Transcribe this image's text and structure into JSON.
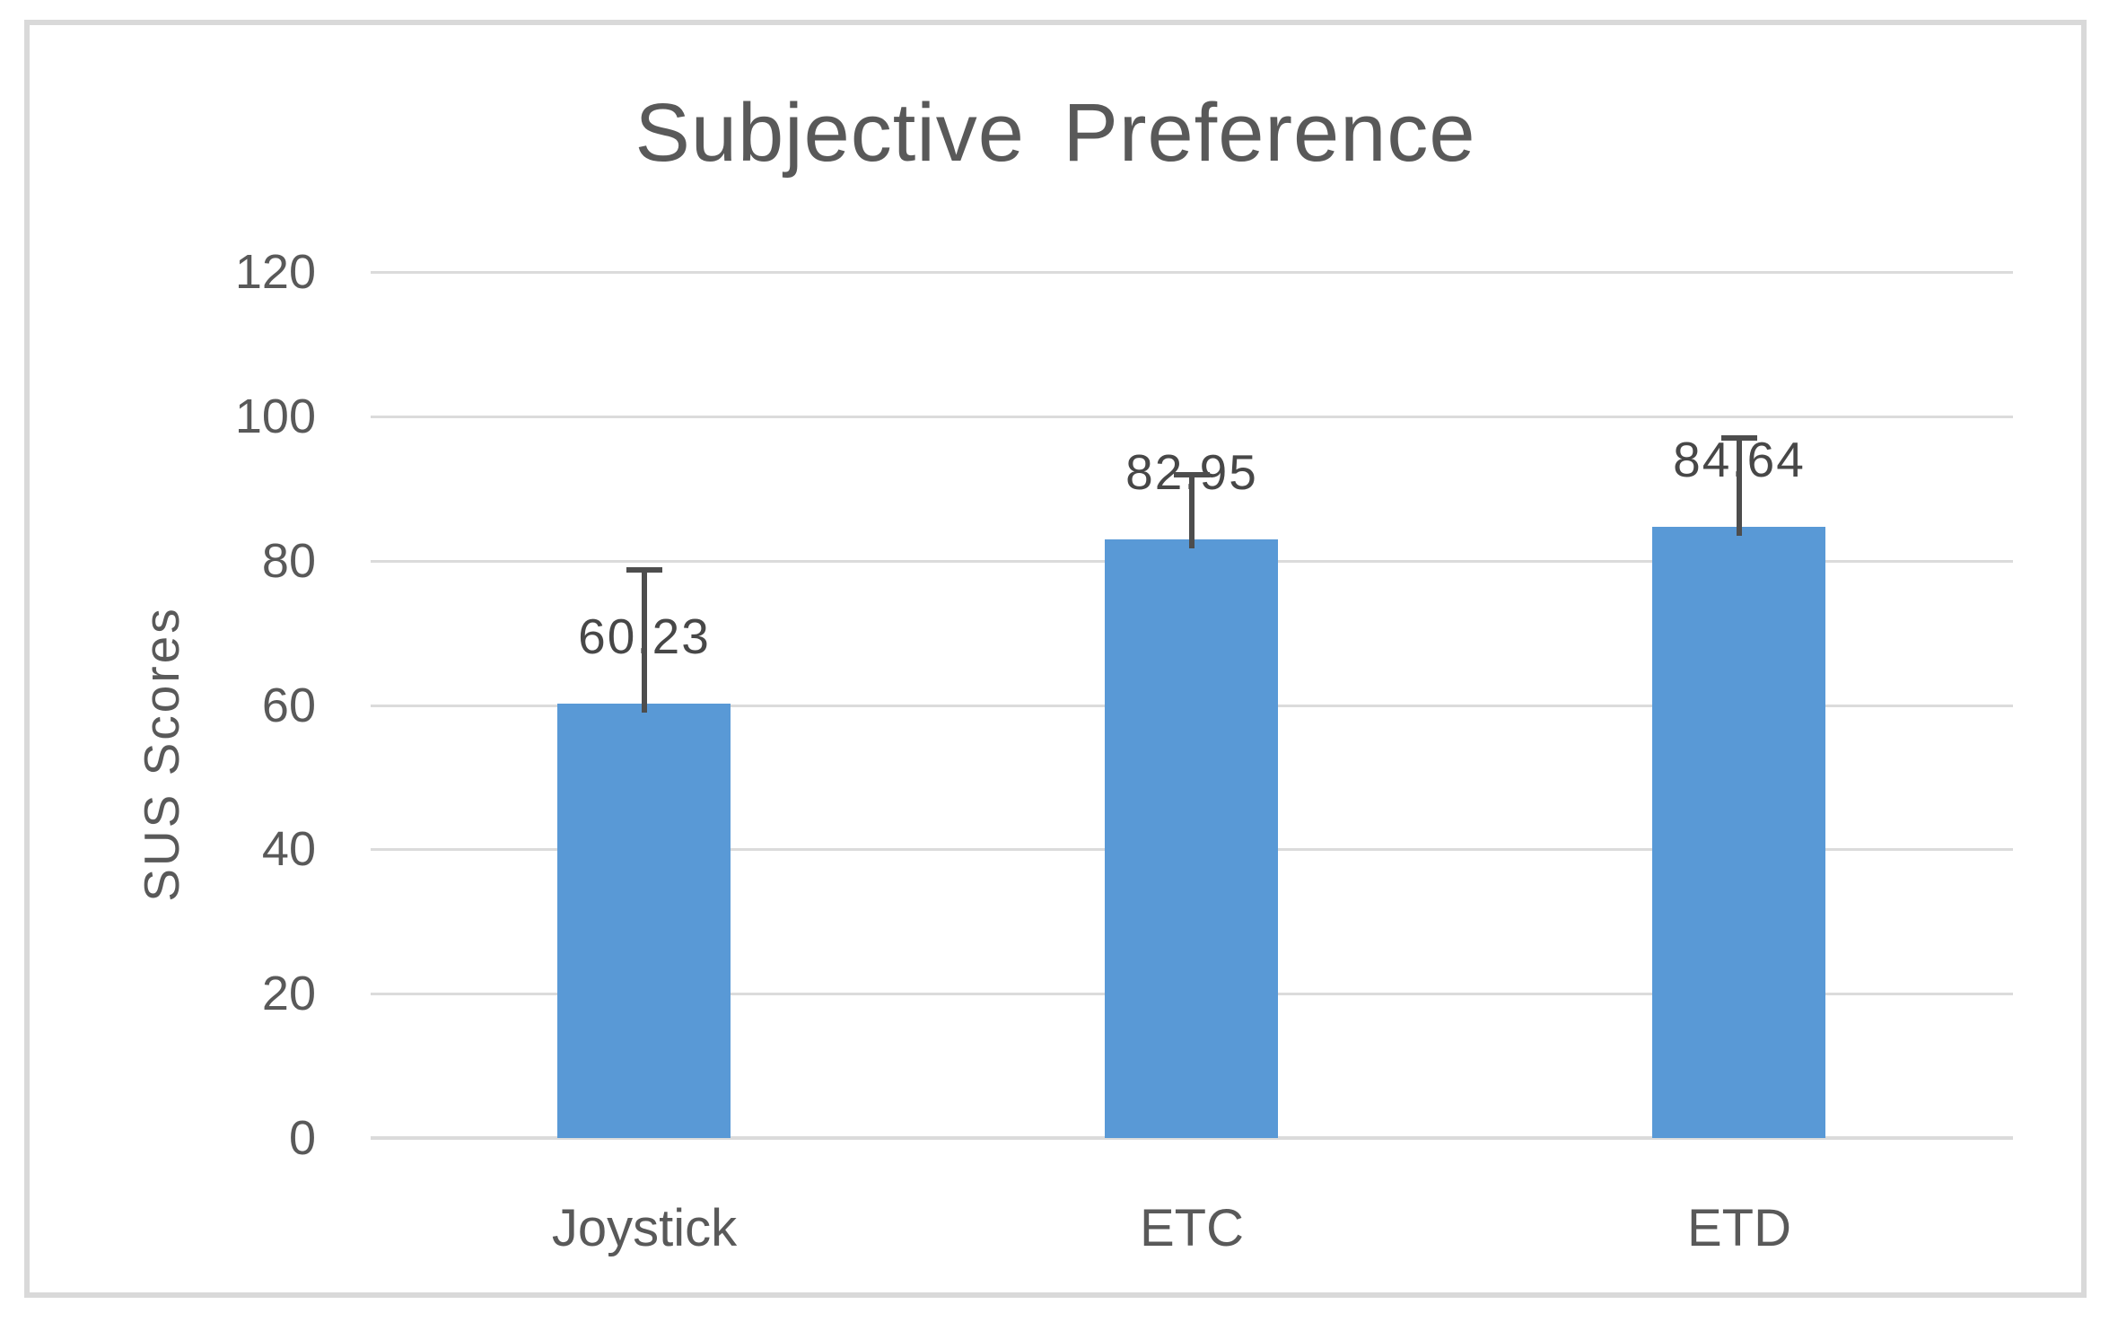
{
  "chart_data": {
    "type": "bar",
    "title": "Subjective Preference",
    "ylabel": "SUS Scores",
    "xlabel": "",
    "categories": [
      "Joystick",
      "ETC",
      "ETD"
    ],
    "series": [
      {
        "name": "SUS Scores",
        "values": [
          60.23,
          82.95,
          84.64
        ],
        "data_labels": [
          "60.23",
          "82.95",
          "84.64"
        ],
        "error_upper": [
          18.5,
          8.9,
          12.3
        ]
      }
    ],
    "ylim": [
      0,
      120
    ],
    "ytick_step": 20,
    "yticks": [
      "0",
      "20",
      "40",
      "60",
      "80",
      "100",
      "120"
    ],
    "grid": true,
    "legend": false,
    "colors": {
      "bar": "#5999D6",
      "gridline": "#DBDBDB",
      "axis_text": "#595959",
      "title_text": "#595959",
      "data_label_text": "#474747",
      "error_bar": "#4D4D4D",
      "frame_border": "#D9D9D9",
      "background": "#FFFFFF"
    }
  }
}
